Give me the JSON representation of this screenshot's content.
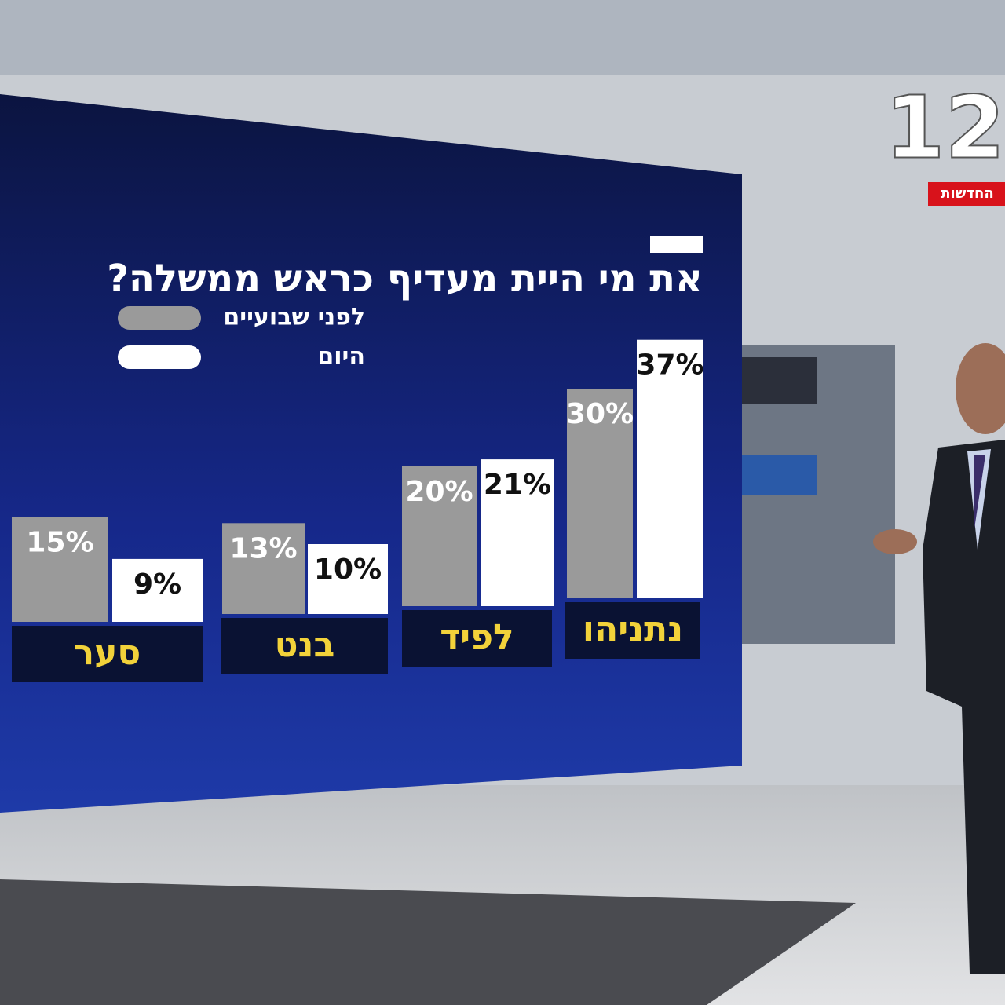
{
  "chart_data": {
    "type": "bar",
    "title": "את מי היית מעדיף כראש ממשלה?",
    "categories": [
      "סער",
      "בנט",
      "לפיד",
      "נתניהו"
    ],
    "series": [
      {
        "name": "לפני שבועיים",
        "color": "#9a9a9a",
        "values": [
          15,
          13,
          20,
          30
        ],
        "value_labels": [
          "15%",
          "13%",
          "20%",
          "30%"
        ]
      },
      {
        "name": "היום",
        "color": "#ffffff",
        "values": [
          9,
          10,
          21,
          37
        ],
        "value_labels": [
          "9%",
          "10%",
          "21%",
          "37%"
        ]
      }
    ]
  },
  "logo": {
    "number": "12",
    "label": "החדשות"
  }
}
